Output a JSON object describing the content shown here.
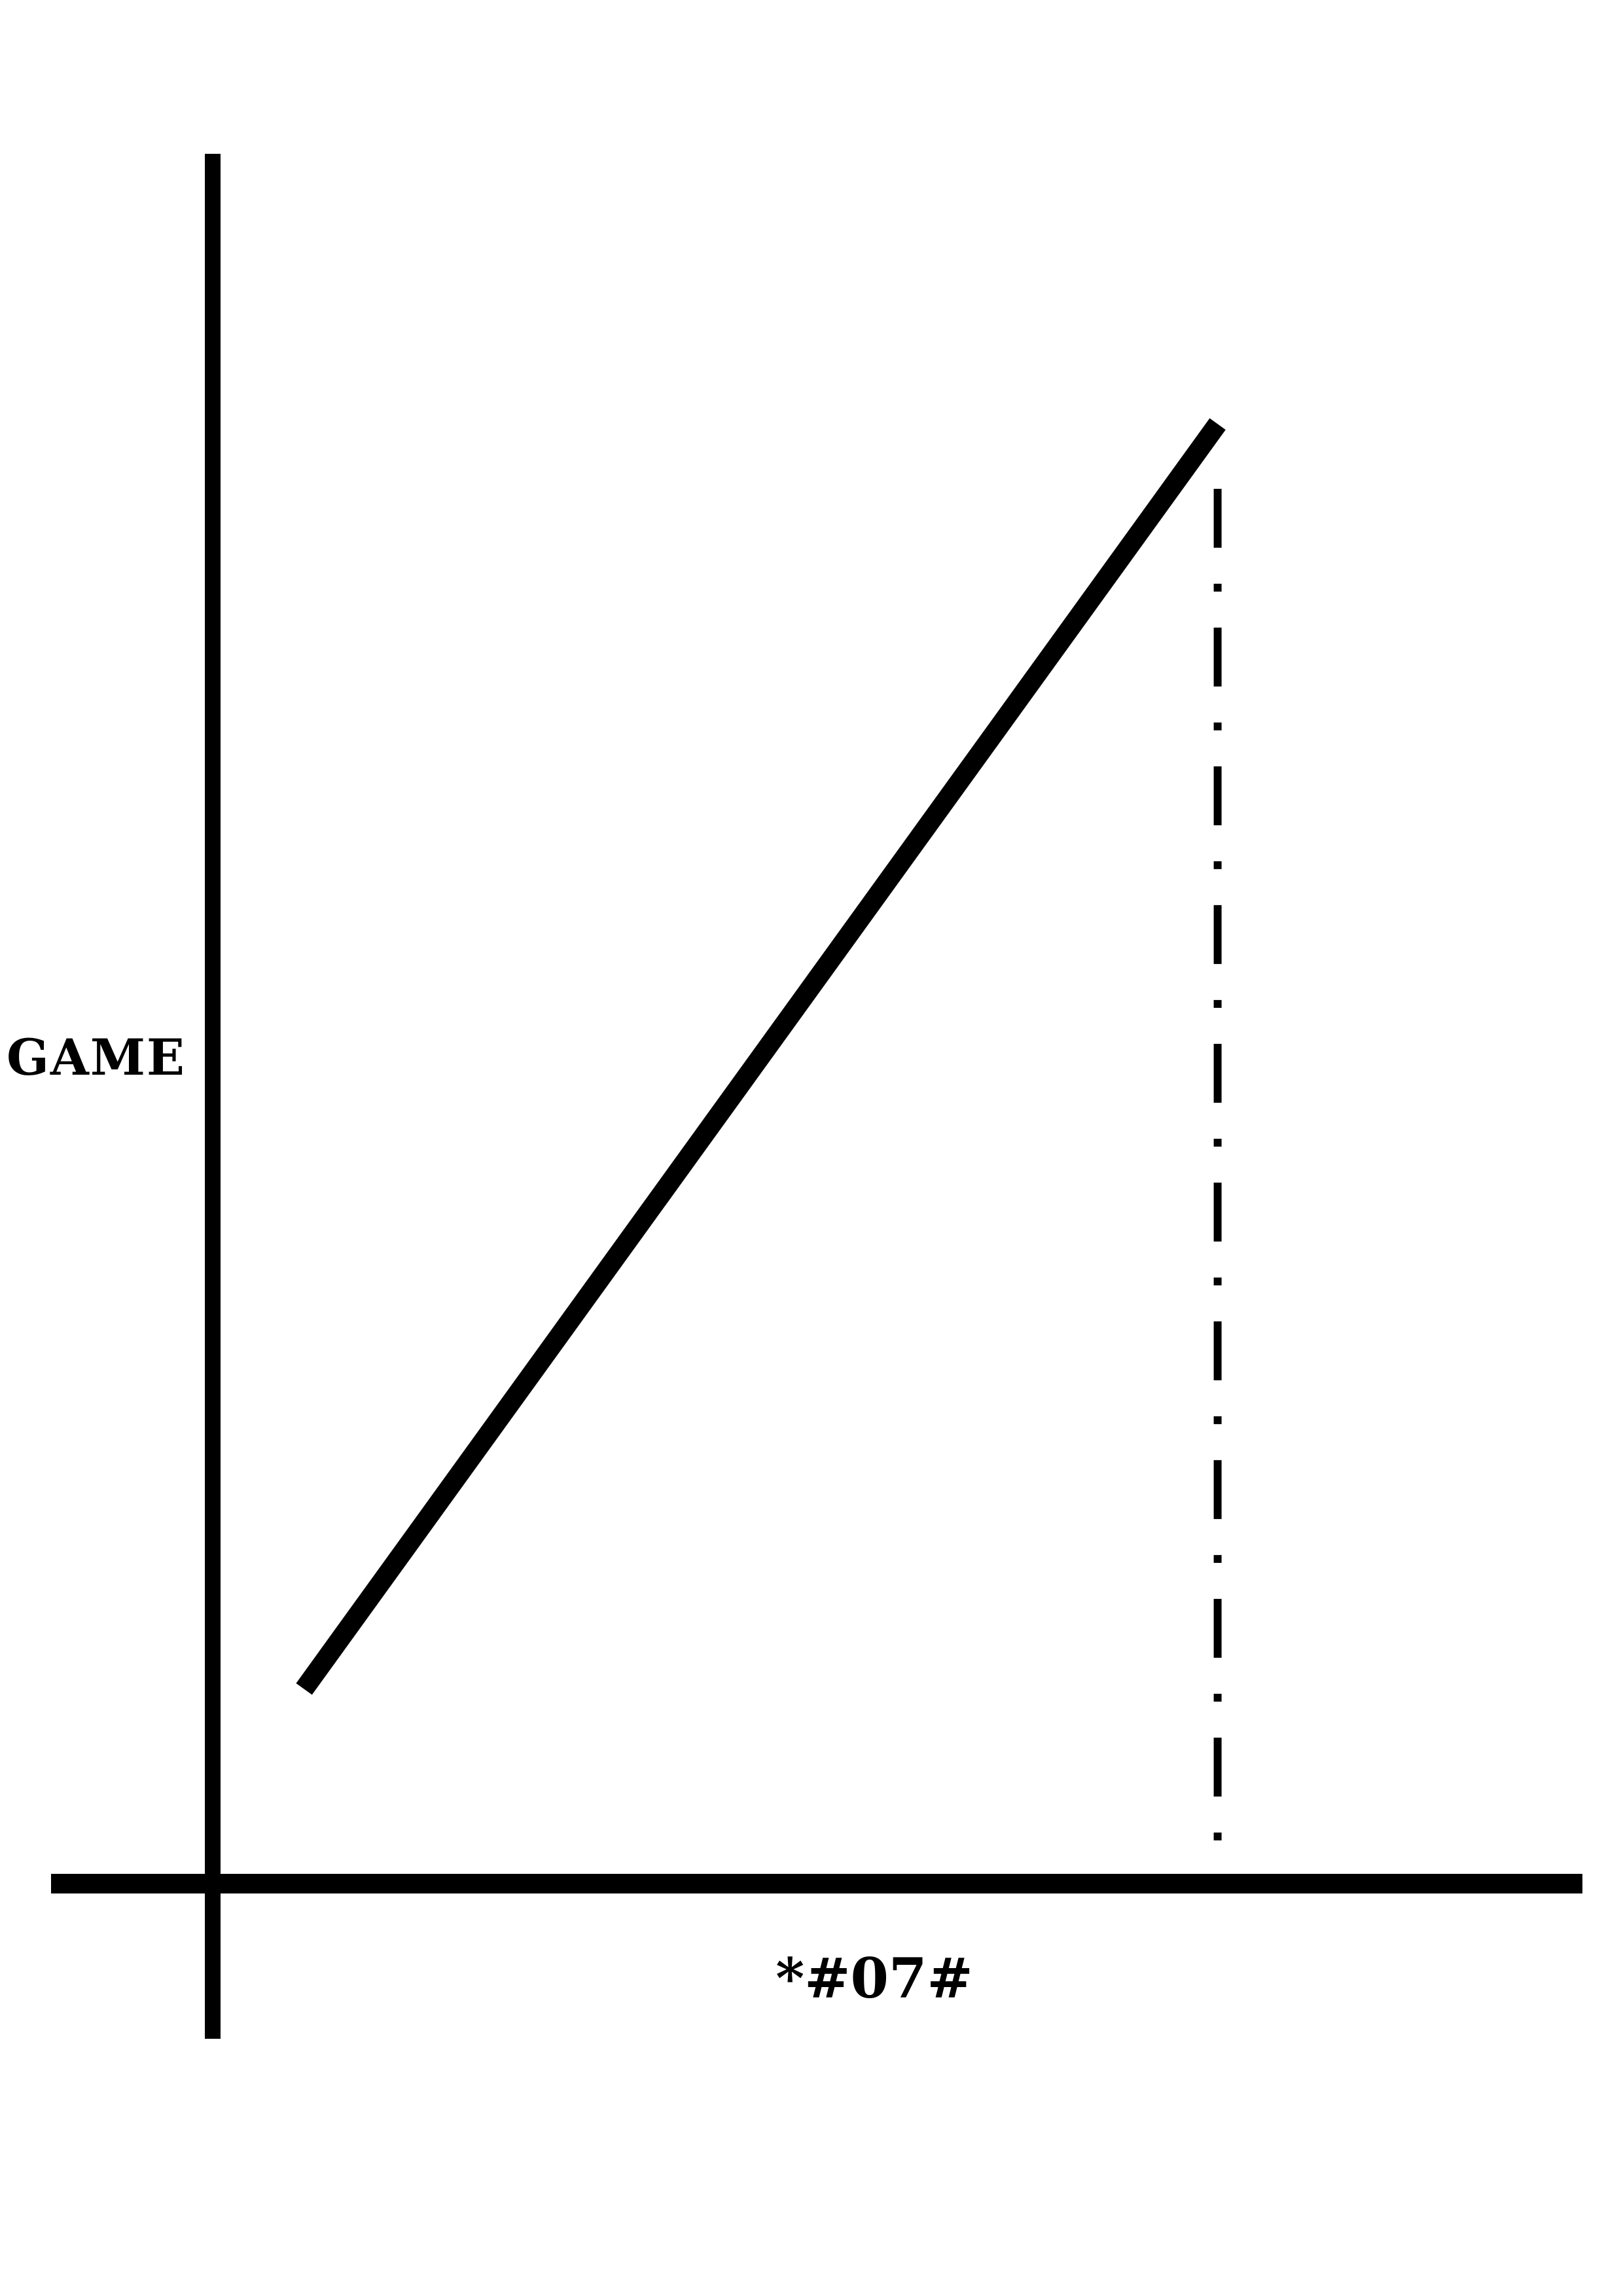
{
  "chart_data": {
    "type": "line",
    "title": "",
    "xlabel": "*#07#",
    "ylabel": "GAME",
    "grid": false,
    "legend": "none",
    "series": [
      {
        "x": [
          0.08,
          0.88
        ],
        "y": [
          0.12,
          0.9
        ]
      }
    ],
    "reference_lines": [
      {
        "orientation": "vertical",
        "x": 0.88,
        "y_from": 0.02,
        "y_to": 0.86,
        "style": "dash-dot"
      }
    ],
    "xlim": [
      0,
      1
    ],
    "ylim": [
      0,
      1
    ],
    "colors": {
      "line": "#000000",
      "axes": "#000000",
      "background": "#ffffff"
    }
  }
}
